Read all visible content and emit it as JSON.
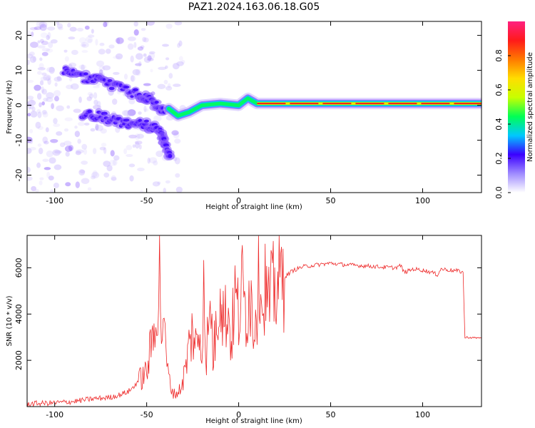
{
  "figure": {
    "title": "PAZ1.2024.163.06.18.G05"
  },
  "chart_data": [
    {
      "type": "heatmap",
      "xlabel": "Height of straight line (km)",
      "ylabel": "Frequency (Hz)",
      "xlim": [
        -115,
        132
      ],
      "ylim": [
        -25,
        24
      ],
      "xticks": [
        -100,
        -50,
        0,
        50,
        100
      ],
      "yticks": [
        -20,
        -10,
        0,
        10,
        20
      ],
      "colorbar": {
        "label": "Normalized spectral amplitude",
        "range": [
          0,
          1
        ],
        "ticks": [
          0.0,
          0.2,
          0.4,
          0.6,
          0.8
        ],
        "colormap": [
          "#ffffff",
          "#9f8bff",
          "#3b00ff",
          "#00c8ff",
          "#00ff55",
          "#c8ff00",
          "#ffdd00",
          "#ff7a00",
          "#ff1a1a",
          "#ff2080"
        ]
      },
      "ridge_frequency": [
        {
          "x": -38,
          "f": -1
        },
        {
          "x": -33,
          "f": -3
        },
        {
          "x": -27,
          "f": -2
        },
        {
          "x": -20,
          "f": 0
        },
        {
          "x": -10,
          "f": 0.5
        },
        {
          "x": 0,
          "f": 0
        },
        {
          "x": 5,
          "f": 2
        },
        {
          "x": 10,
          "f": 0.5
        },
        {
          "x": 20,
          "f": 0.5
        },
        {
          "x": 40,
          "f": 0.5
        },
        {
          "x": 60,
          "f": 0.5
        },
        {
          "x": 80,
          "f": 0.5
        },
        {
          "x": 100,
          "f": 0.5
        },
        {
          "x": 120,
          "f": 0.5
        },
        {
          "x": 132,
          "f": 0.5
        }
      ],
      "upper_branch": [
        {
          "x": -95,
          "f": 10
        },
        {
          "x": -85,
          "f": 8
        },
        {
          "x": -75,
          "f": 7
        },
        {
          "x": -65,
          "f": 5
        },
        {
          "x": -55,
          "f": 3
        },
        {
          "x": -50,
          "f": 2
        },
        {
          "x": -45,
          "f": 0
        },
        {
          "x": -40,
          "f": -2
        }
      ],
      "lower_branch": [
        {
          "x": -85,
          "f": -3
        },
        {
          "x": -75,
          "f": -3
        },
        {
          "x": -65,
          "f": -5
        },
        {
          "x": -55,
          "f": -5
        },
        {
          "x": -48,
          "f": -6
        },
        {
          "x": -42,
          "f": -8
        },
        {
          "x": -40,
          "f": -12
        },
        {
          "x": -37,
          "f": -14
        }
      ]
    },
    {
      "type": "line",
      "xlabel": "Height of straight line (km)",
      "ylabel": "SNR (10 * v/v)",
      "xlim": [
        -115,
        132
      ],
      "ylim": [
        0,
        7400
      ],
      "xticks": [
        -100,
        -50,
        0,
        50,
        100
      ],
      "yticks": [
        2000,
        4000,
        6000
      ],
      "color": "#ee2a2a",
      "series": [
        {
          "x": [
            -115,
            -100,
            -90,
            -80,
            -70,
            -65,
            -60,
            -57,
            -55,
            -52,
            -50,
            -48,
            -46,
            -45,
            -44,
            -43,
            -42,
            -41,
            -40,
            -39,
            -38,
            -37,
            -36,
            -35,
            -33,
            -31,
            -29,
            -27,
            -25,
            -23,
            -21,
            -20,
            -19,
            -18,
            -17,
            -16,
            -15,
            -14,
            -12,
            -10,
            -8,
            -6,
            -4,
            -2,
            0,
            2,
            4,
            6,
            8,
            10,
            12,
            13,
            14,
            16,
            18,
            20,
            22,
            25,
            28,
            30,
            35,
            40,
            45,
            50,
            55,
            60,
            65,
            70,
            75,
            80,
            85,
            88,
            90,
            95,
            100,
            105,
            108,
            110,
            115,
            120,
            122,
            123,
            124,
            126,
            130,
            132
          ],
          "y": [
            120,
            160,
            220,
            330,
            400,
            500,
            650,
            850,
            1100,
            1300,
            1500,
            2400,
            3400,
            5200,
            3600,
            6100,
            3200,
            4300,
            2600,
            1900,
            1200,
            900,
            700,
            550,
            600,
            900,
            1600,
            2600,
            3300,
            2500,
            3400,
            2000,
            7200,
            1600,
            2900,
            3300,
            4500,
            2100,
            3500,
            5600,
            3600,
            4300,
            2800,
            4800,
            3900,
            5100,
            4000,
            5300,
            3500,
            4800,
            6900,
            3400,
            5500,
            4300,
            4800,
            5200,
            5400,
            5600,
            5800,
            5900,
            6050,
            6100,
            6150,
            6200,
            6150,
            6120,
            6100,
            6080,
            6050,
            6020,
            6000,
            6100,
            5800,
            5950,
            5900,
            5800,
            5700,
            5950,
            5900,
            5850,
            5800,
            2950,
            3000,
            2980,
            2970,
            2980
          ]
        }
      ]
    }
  ]
}
